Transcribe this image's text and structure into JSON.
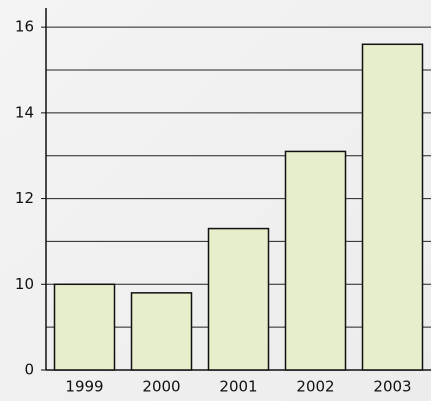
{
  "chart_data": {
    "type": "bar",
    "categories": [
      "1999",
      "2000",
      "2001",
      "2002",
      "2003"
    ],
    "values": [
      10.0,
      9.8,
      11.3,
      13.1,
      15.6
    ],
    "color": "#e6eecb",
    "ylim": [
      0,
      16.4
    ],
    "ybreak": [
      0,
      8
    ],
    "yticks": [
      0,
      10,
      12,
      14,
      16
    ],
    "minor_yticks": [
      9,
      11,
      13,
      15
    ],
    "grid": true
  }
}
